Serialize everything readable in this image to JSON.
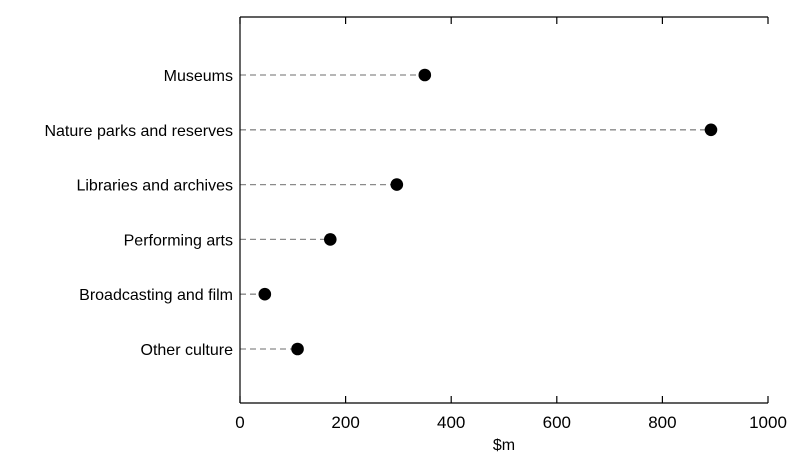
{
  "chart_data": {
    "type": "scatter",
    "style": "dot-plot",
    "categories": [
      "Museums",
      "Nature parks and reserves",
      "Libraries and archives",
      "Performing arts",
      "Broadcasting and film",
      "Other culture"
    ],
    "values": [
      350,
      892,
      297,
      171,
      47,
      109
    ],
    "title": "",
    "xlabel": "$m",
    "ylabel": "",
    "xlim": [
      0,
      1000
    ],
    "xticks": [
      "0",
      "200",
      "400",
      "600",
      "800",
      "1000"
    ],
    "grid": false,
    "leader_lines": "dashed",
    "marker_color": "#000000",
    "leader_color": "#8a8a8a"
  }
}
